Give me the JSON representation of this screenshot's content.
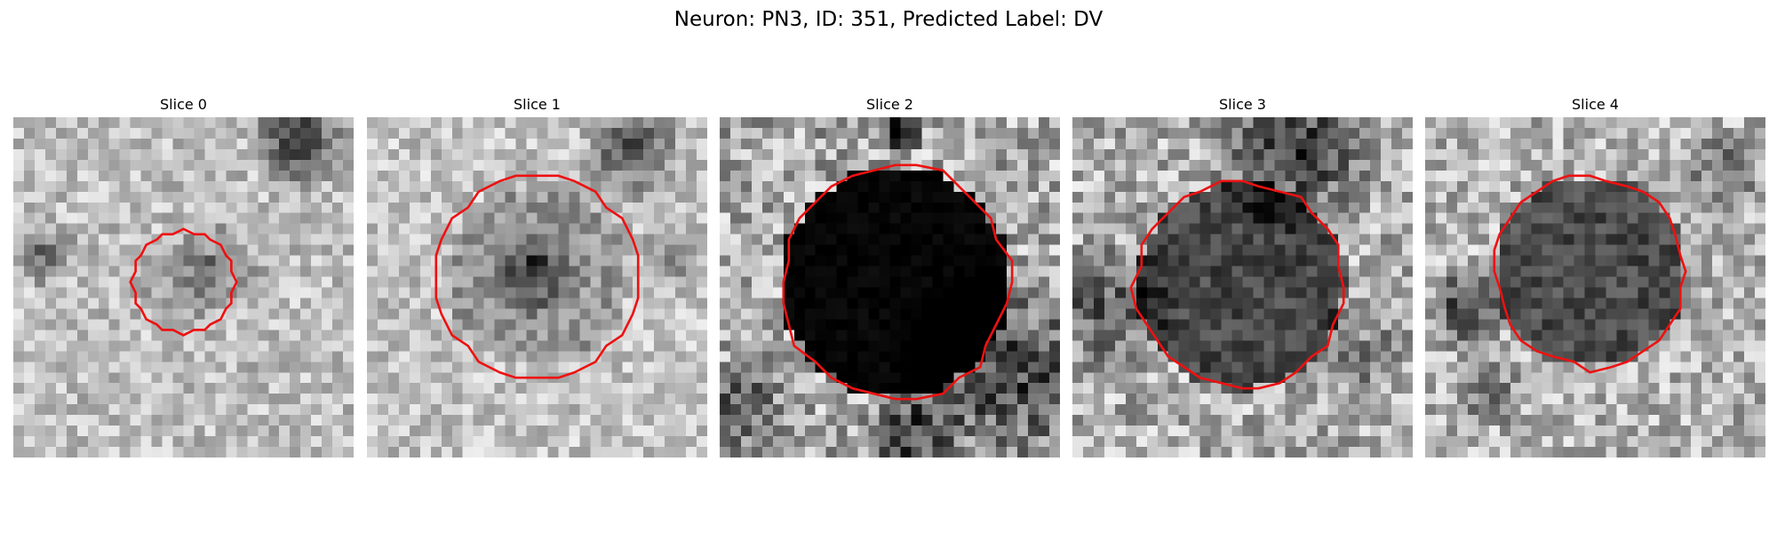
{
  "figure": {
    "title": "Neuron: PN3, ID: 351, Predicted Label: DV"
  },
  "colors": {
    "contour": "#ee1111"
  },
  "panels": [
    {
      "title": "Slice 0",
      "kind": "small-ring"
    },
    {
      "title": "Slice 1",
      "kind": "large-ring"
    },
    {
      "title": "Slice 2",
      "kind": "dark-body"
    },
    {
      "title": "Slice 3",
      "kind": "gray-body"
    },
    {
      "title": "Slice 4",
      "kind": "gray-body-2"
    }
  ]
}
